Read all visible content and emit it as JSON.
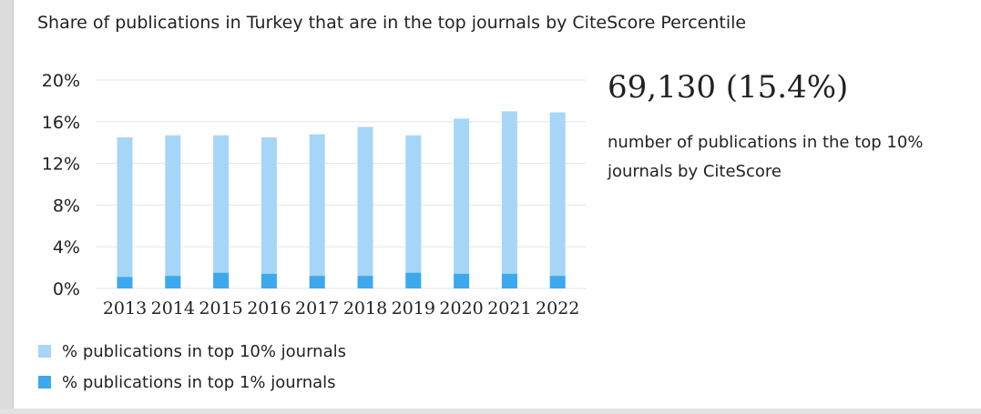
{
  "colors": {
    "top10": "#a5d6f7",
    "top1": "#3ea8ec",
    "grid": "#e6e6e6"
  },
  "summary": {
    "value": "69,130 (15.4%)",
    "description": "number of publications in the top 10% journals by CiteScore"
  },
  "chart_data": {
    "type": "bar",
    "title": "Share of publications in Turkey that are in the top journals by CiteScore Percentile",
    "categories": [
      "2013",
      "2014",
      "2015",
      "2016",
      "2017",
      "2018",
      "2019",
      "2020",
      "2021",
      "2022"
    ],
    "ylim": [
      0,
      20
    ],
    "yticks": [
      "0%",
      "4%",
      "8%",
      "12%",
      "16%",
      "20%"
    ],
    "ytick_values": [
      0,
      4,
      8,
      12,
      16,
      20
    ],
    "grid": true,
    "legend_position": "bottom-left",
    "series": [
      {
        "name": "% publications in top 10% journals",
        "values": [
          14.5,
          14.7,
          14.7,
          14.5,
          14.8,
          15.5,
          14.7,
          16.3,
          17.0,
          16.9
        ]
      },
      {
        "name": "% publications in top 1% journals",
        "values": [
          1.1,
          1.2,
          1.5,
          1.4,
          1.2,
          1.2,
          1.5,
          1.4,
          1.4,
          1.2
        ]
      }
    ]
  }
}
